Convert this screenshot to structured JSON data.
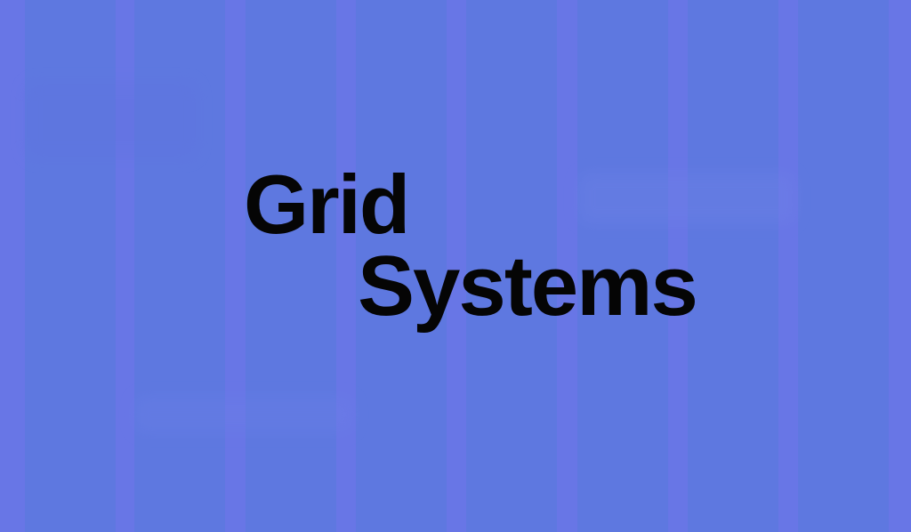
{
  "title": {
    "line1": "Grid",
    "line2": "Systems"
  },
  "colors": {
    "background": "#6876e6",
    "column": "#5e78e0",
    "gutter": "#6a81ef",
    "text": "#050505"
  }
}
